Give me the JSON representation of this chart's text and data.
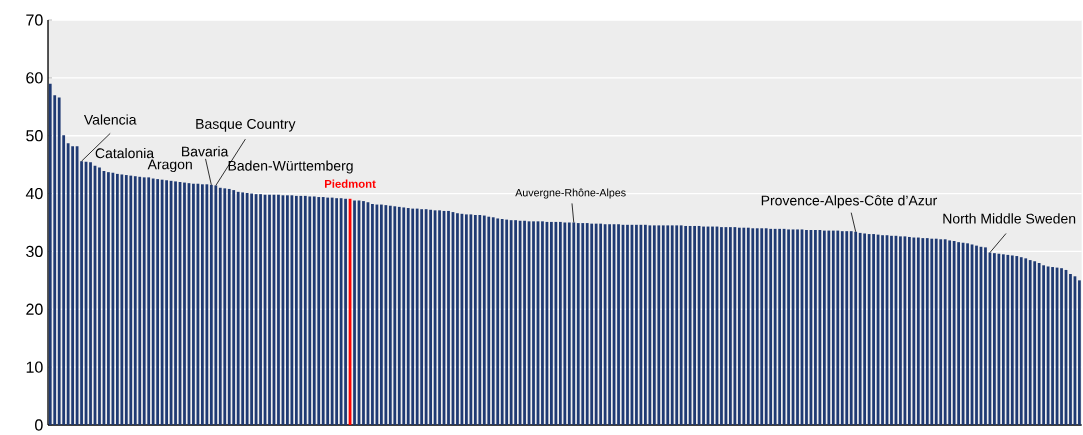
{
  "chart_data": {
    "type": "bar",
    "categories": [
      null,
      null,
      null,
      null,
      null,
      null,
      null,
      null,
      null,
      null,
      null,
      null,
      null,
      null,
      null,
      null,
      null,
      null,
      null,
      null,
      null,
      null,
      null,
      null,
      null,
      null,
      null,
      null,
      null,
      null,
      null,
      null,
      null,
      null,
      null,
      null,
      null,
      null,
      null,
      null,
      null,
      null,
      null,
      null,
      null,
      null,
      null,
      null,
      null,
      null,
      null,
      null,
      null,
      null,
      null,
      null,
      null,
      null,
      null,
      null,
      null,
      null,
      null,
      null,
      null,
      null,
      null,
      null,
      null,
      null,
      null,
      null,
      null,
      null,
      null,
      null,
      null,
      null,
      null,
      null,
      null,
      null,
      null,
      null,
      null,
      null,
      null,
      null,
      null,
      null,
      null,
      null,
      null,
      null,
      null,
      null,
      null,
      null,
      null,
      null,
      null,
      null,
      null,
      null,
      null,
      null,
      null,
      null,
      null,
      null,
      null,
      null,
      null,
      null,
      null,
      null,
      null,
      null,
      null,
      null,
      null,
      null,
      null,
      null,
      null,
      null,
      null,
      null,
      null,
      null,
      null,
      null,
      null,
      null,
      null,
      null,
      null,
      null,
      null,
      null,
      null,
      null,
      null,
      null,
      null,
      null,
      null,
      null,
      null,
      null,
      null,
      null,
      null,
      null,
      null,
      null,
      null,
      null,
      null,
      null,
      null,
      null,
      null,
      null,
      null,
      null,
      null,
      null,
      null,
      null,
      null,
      null,
      null,
      null,
      null,
      null,
      null,
      null,
      null,
      null,
      null,
      null,
      null,
      null,
      null,
      null,
      null,
      null,
      null,
      null,
      null,
      null,
      null,
      null,
      null,
      null,
      null,
      null,
      null,
      null,
      null,
      null,
      null,
      null,
      null,
      null,
      null,
      null,
      null,
      null,
      null,
      null,
      null,
      null,
      null,
      null,
      null,
      null,
      null,
      null,
      null,
      null,
      null,
      null,
      null,
      null,
      null,
      null,
      null,
      null,
      null
    ],
    "values": [
      59.0,
      57.0,
      56.6,
      50.1,
      48.7,
      48.2,
      48.2,
      45.6,
      45.5,
      45.4,
      44.8,
      44.5,
      43.9,
      43.7,
      43.6,
      43.4,
      43.3,
      43.2,
      43.1,
      43.0,
      42.9,
      42.8,
      42.8,
      42.6,
      42.5,
      42.4,
      42.3,
      42.2,
      42.1,
      42.0,
      41.9,
      41.8,
      41.7,
      41.7,
      41.6,
      41.6,
      41.5,
      41.4,
      41.0,
      40.9,
      40.8,
      40.6,
      40.3,
      40.2,
      40.1,
      40.0,
      39.9,
      39.9,
      39.8,
      39.8,
      39.8,
      39.8,
      39.7,
      39.7,
      39.7,
      39.6,
      39.6,
      39.6,
      39.5,
      39.5,
      39.4,
      39.4,
      39.3,
      39.3,
      39.2,
      39.2,
      39.1,
      39.1,
      38.8,
      38.8,
      38.7,
      38.5,
      38.2,
      38.1,
      38.1,
      38.0,
      37.9,
      37.8,
      37.7,
      37.6,
      37.5,
      37.4,
      37.4,
      37.3,
      37.3,
      37.2,
      37.1,
      37.1,
      37.0,
      37.0,
      36.8,
      36.6,
      36.5,
      36.4,
      36.4,
      36.3,
      36.3,
      36.2,
      36.0,
      35.9,
      35.7,
      35.6,
      35.5,
      35.4,
      35.4,
      35.3,
      35.3,
      35.2,
      35.2,
      35.2,
      35.2,
      35.1,
      35.1,
      35.1,
      35.1,
      35.0,
      35.0,
      35.0,
      34.9,
      34.9,
      34.9,
      34.8,
      34.8,
      34.8,
      34.7,
      34.7,
      34.7,
      34.7,
      34.6,
      34.6,
      34.6,
      34.6,
      34.6,
      34.6,
      34.5,
      34.5,
      34.5,
      34.5,
      34.5,
      34.5,
      34.5,
      34.5,
      34.4,
      34.4,
      34.4,
      34.4,
      34.3,
      34.3,
      34.3,
      34.3,
      34.2,
      34.2,
      34.2,
      34.2,
      34.1,
      34.1,
      34.1,
      34.0,
      34.0,
      34.0,
      34.0,
      33.9,
      33.9,
      33.9,
      33.9,
      33.8,
      33.8,
      33.8,
      33.8,
      33.7,
      33.7,
      33.7,
      33.7,
      33.6,
      33.6,
      33.6,
      33.6,
      33.5,
      33.5,
      33.5,
      33.4,
      33.2,
      33.1,
      33.0,
      33.0,
      32.9,
      32.8,
      32.8,
      32.7,
      32.7,
      32.6,
      32.6,
      32.5,
      32.4,
      32.4,
      32.3,
      32.3,
      32.2,
      32.2,
      32.1,
      32.1,
      31.9,
      31.8,
      31.6,
      31.5,
      31.4,
      31.2,
      31.0,
      30.8,
      30.7,
      29.8,
      29.7,
      29.6,
      29.5,
      29.4,
      29.3,
      29.2,
      29.0,
      28.8,
      28.5,
      28.3,
      28.0,
      27.6,
      27.4,
      27.3,
      27.2,
      27.1,
      26.8,
      26.1,
      25.7,
      25.0
    ],
    "colors": [
      "#1f3a73",
      "#1f3a73",
      "#1f3a73",
      "#1f3a73",
      "#1f3a73",
      "#1f3a73",
      "#1f3a73",
      "#1f3a73",
      "#1f3a73",
      "#1f3a73",
      "#1f3a73",
      "#1f3a73",
      "#1f3a73",
      "#1f3a73",
      "#1f3a73",
      "#1f3a73",
      "#1f3a73",
      "#1f3a73",
      "#1f3a73",
      "#1f3a73",
      "#1f3a73",
      "#1f3a73",
      "#1f3a73",
      "#1f3a73",
      "#1f3a73",
      "#1f3a73",
      "#1f3a73",
      "#1f3a73",
      "#1f3a73",
      "#1f3a73",
      "#1f3a73",
      "#1f3a73",
      "#1f3a73",
      "#1f3a73",
      "#1f3a73",
      "#1f3a73",
      "#1f3a73",
      "#1f3a73",
      "#1f3a73",
      "#1f3a73",
      "#1f3a73",
      "#1f3a73",
      "#1f3a73",
      "#1f3a73",
      "#1f3a73",
      "#1f3a73",
      "#1f3a73",
      "#1f3a73",
      "#1f3a73",
      "#1f3a73",
      "#1f3a73",
      "#1f3a73",
      "#1f3a73",
      "#1f3a73",
      "#1f3a73",
      "#1f3a73",
      "#1f3a73",
      "#1f3a73",
      "#1f3a73",
      "#1f3a73",
      "#1f3a73",
      "#1f3a73",
      "#1f3a73",
      "#1f3a73",
      "#1f3a73",
      "#1f3a73",
      "#1f3a73",
      "#ff0000",
      "#1f3a73",
      "#1f3a73",
      "#1f3a73",
      "#1f3a73",
      "#1f3a73",
      "#1f3a73",
      "#1f3a73",
      "#1f3a73",
      "#1f3a73",
      "#1f3a73",
      "#1f3a73",
      "#1f3a73",
      "#1f3a73",
      "#1f3a73",
      "#1f3a73",
      "#1f3a73",
      "#1f3a73",
      "#1f3a73",
      "#1f3a73",
      "#1f3a73",
      "#1f3a73",
      "#1f3a73",
      "#1f3a73",
      "#1f3a73",
      "#1f3a73",
      "#1f3a73",
      "#1f3a73",
      "#1f3a73",
      "#1f3a73",
      "#1f3a73",
      "#1f3a73",
      "#1f3a73",
      "#1f3a73",
      "#1f3a73",
      "#1f3a73",
      "#1f3a73",
      "#1f3a73",
      "#1f3a73",
      "#1f3a73",
      "#1f3a73",
      "#1f3a73",
      "#1f3a73",
      "#1f3a73",
      "#1f3a73",
      "#1f3a73",
      "#1f3a73",
      "#1f3a73",
      "#1f3a73",
      "#1f3a73",
      "#1f3a73",
      "#1f3a73",
      "#1f3a73",
      "#1f3a73",
      "#1f3a73",
      "#1f3a73",
      "#1f3a73",
      "#1f3a73",
      "#1f3a73",
      "#1f3a73",
      "#1f3a73",
      "#1f3a73",
      "#1f3a73",
      "#1f3a73",
      "#1f3a73",
      "#1f3a73",
      "#1f3a73",
      "#1f3a73",
      "#1f3a73",
      "#1f3a73",
      "#1f3a73",
      "#1f3a73",
      "#1f3a73",
      "#1f3a73",
      "#1f3a73",
      "#1f3a73",
      "#1f3a73",
      "#1f3a73",
      "#1f3a73",
      "#1f3a73",
      "#1f3a73",
      "#1f3a73",
      "#1f3a73",
      "#1f3a73",
      "#1f3a73",
      "#1f3a73",
      "#1f3a73",
      "#1f3a73",
      "#1f3a73",
      "#1f3a73",
      "#1f3a73",
      "#1f3a73",
      "#1f3a73",
      "#1f3a73",
      "#1f3a73",
      "#1f3a73",
      "#1f3a73",
      "#1f3a73",
      "#1f3a73",
      "#1f3a73",
      "#1f3a73",
      "#1f3a73",
      "#1f3a73",
      "#1f3a73",
      "#1f3a73",
      "#1f3a73",
      "#1f3a73",
      "#1f3a73",
      "#1f3a73",
      "#1f3a73",
      "#1f3a73",
      "#1f3a73",
      "#1f3a73",
      "#1f3a73",
      "#1f3a73",
      "#1f3a73",
      "#1f3a73",
      "#1f3a73",
      "#1f3a73",
      "#1f3a73",
      "#1f3a73",
      "#1f3a73",
      "#1f3a73",
      "#1f3a73",
      "#1f3a73",
      "#1f3a73",
      "#1f3a73",
      "#1f3a73",
      "#1f3a73",
      "#1f3a73",
      "#1f3a73",
      "#1f3a73",
      "#1f3a73",
      "#1f3a73",
      "#1f3a73",
      "#1f3a73",
      "#1f3a73",
      "#1f3a73",
      "#1f3a73",
      "#1f3a73",
      "#1f3a73",
      "#1f3a73",
      "#1f3a73",
      "#1f3a73",
      "#1f3a73",
      "#1f3a73",
      "#1f3a73",
      "#1f3a73",
      "#1f3a73",
      "#1f3a73",
      "#1f3a73",
      "#1f3a73",
      "#1f3a73",
      "#1f3a73",
      "#1f3a73",
      "#1f3a73",
      "#1f3a73",
      "#1f3a73",
      "#1f3a73",
      "#1f3a73",
      "#1f3a73",
      "#1f3a73",
      "#1f3a73",
      "#1f3a73"
    ],
    "ylim": [
      0,
      70
    ],
    "yticks": [
      0,
      10,
      20,
      30,
      40,
      50,
      60,
      70
    ],
    "grid": "y",
    "tick_labels": "y",
    "annotations": [
      "Valencia",
      "Catalonia",
      "Aragon",
      "Bavaria",
      "Basque Country",
      "Baden-Württemberg",
      "Piedmont",
      "Auvergne-Rhône-Alpes",
      "Provence-Alpes-Côte d’Azur",
      "North Middle Sweden"
    ]
  }
}
